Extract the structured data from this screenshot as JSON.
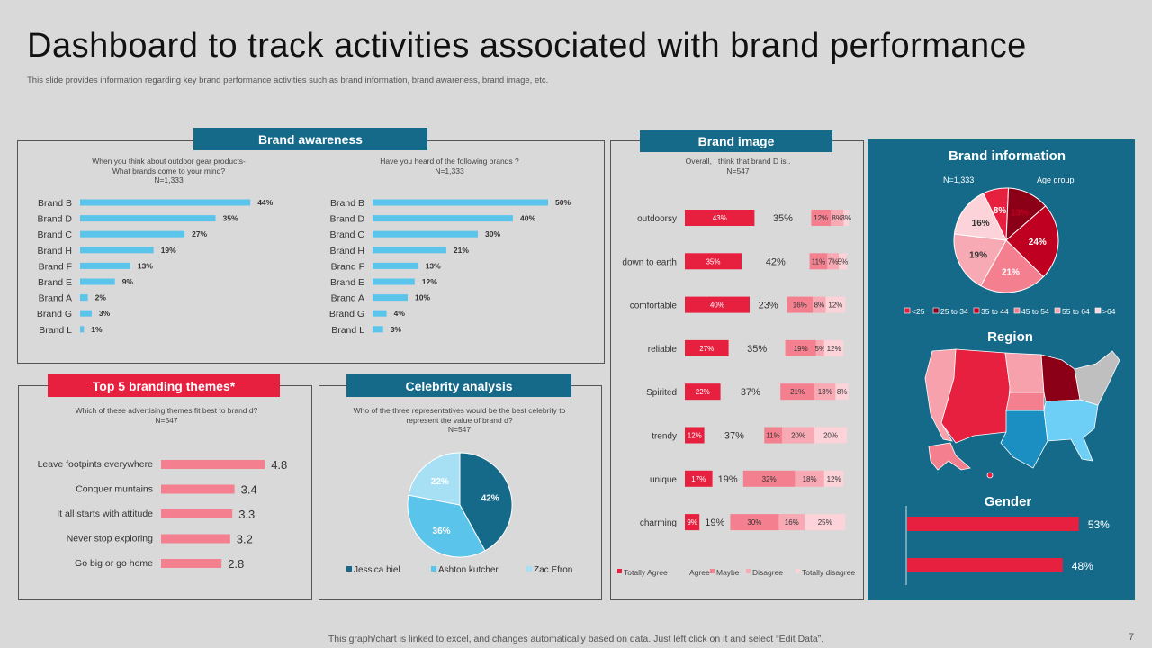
{
  "title": "Dashboard to track activities associated with brand performance",
  "subtitle": "This slide provides information regarding key brand performance activities such as brand information, brand awareness, brand image, etc.",
  "footer": "This graph/chart is linked to excel,  and changes automatically based on data. Just left click on it and select “Edit Data”.",
  "page_number": "7",
  "colors": {
    "blue": "#156a8a",
    "light_blue": "#5bc4ea",
    "red": "#e8203f",
    "pink": "#f4808f"
  },
  "awareness": {
    "header": "Brand awareness",
    "q1": [
      "When you think about outdoor gear products-",
      "What brands  come to your mind?",
      "N=1,333"
    ],
    "q2": [
      "Have you heard of the following brands ?",
      "N=1,333"
    ]
  },
  "themes": {
    "header": "Top 5 branding themes*",
    "question": [
      "Which of these advertising themes fit best to brand  d?",
      "N=547"
    ]
  },
  "celebrity": {
    "header": "Celebrity analysis",
    "question": [
      "Who of the three representatives would be the best celebrity to",
      "represent the value of brand d?",
      "N=547"
    ]
  },
  "image": {
    "header": "Brand image",
    "question": [
      "Overall, I think that brand D is..",
      "N=547"
    ]
  },
  "info": {
    "header": "Brand information",
    "n_label": "N=1,333",
    "age_label": "Age group",
    "region_title": "Region",
    "gender_title": "Gender"
  },
  "chart_data": [
    {
      "id": "awareness_unaided",
      "type": "bar",
      "categories": [
        "Brand B",
        "Brand D",
        "Brand C",
        "Brand H",
        "Brand F",
        "Brand E",
        "Brand A",
        "Brand G",
        "Brand L"
      ],
      "values": [
        44,
        35,
        27,
        19,
        13,
        9,
        2,
        3,
        1
      ],
      "unit": "%"
    },
    {
      "id": "awareness_aided",
      "type": "bar",
      "categories": [
        "Brand B",
        "Brand D",
        "Brand C",
        "Brand H",
        "Brand F",
        "Brand E",
        "Brand A",
        "Brand G",
        "Brand L"
      ],
      "values": [
        50,
        40,
        30,
        21,
        13,
        12,
        10,
        4,
        3
      ],
      "unit": "%"
    },
    {
      "id": "themes",
      "type": "bar",
      "categories": [
        "Leave footpints everywhere",
        "Conquer muntains",
        "It all starts with attitude",
        "Never stop exploring",
        "Go big or go home"
      ],
      "values": [
        4.8,
        3.4,
        3.3,
        3.2,
        2.8
      ]
    },
    {
      "id": "celebrity",
      "type": "pie",
      "labels": [
        "Jessica biel",
        "Ashton kutcher",
        "Zac Efron"
      ],
      "values": [
        42,
        36,
        22
      ],
      "unit": "%"
    },
    {
      "id": "brand_image",
      "type": "bar",
      "categories": [
        "outdoorsy",
        "down to earth",
        "comfortable",
        "reliable",
        "Spirited",
        "trendy",
        "unique",
        "charming"
      ],
      "series": [
        {
          "name": "Totally Agree",
          "values": [
            43,
            35,
            40,
            27,
            22,
            12,
            17,
            9
          ]
        },
        {
          "name": "Agree",
          "values": [
            35,
            42,
            23,
            35,
            37,
            37,
            19,
            19
          ]
        },
        {
          "name": "Maybe",
          "values": [
            12,
            11,
            16,
            19,
            21,
            11,
            32,
            30
          ]
        },
        {
          "name": "Disagree",
          "values": [
            8,
            7,
            8,
            5,
            13,
            20,
            18,
            16
          ]
        },
        {
          "name": "Totally disagree",
          "values": [
            3,
            5,
            12,
            12,
            8,
            20,
            12,
            25
          ]
        }
      ],
      "unit": "%"
    },
    {
      "id": "age_group",
      "type": "pie",
      "labels": [
        "<25",
        "25 to 34",
        "35 to 44",
        "45 to 54",
        "55 to 64",
        ">64"
      ],
      "values": [
        8,
        13,
        24,
        21,
        19,
        16
      ],
      "unit": "%"
    },
    {
      "id": "gender",
      "type": "bar",
      "values": [
        53,
        48
      ],
      "unit": "%"
    }
  ]
}
